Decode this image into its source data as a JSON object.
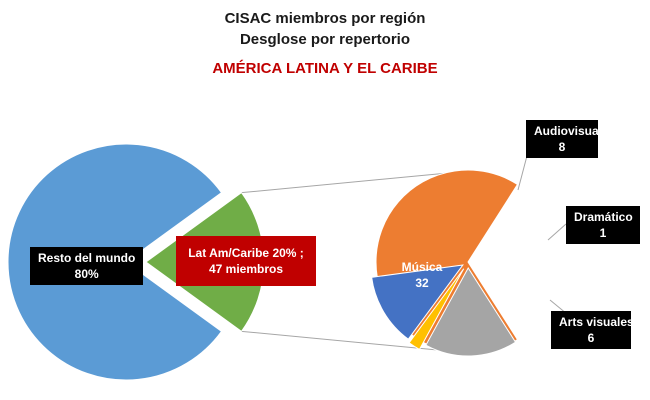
{
  "header": {
    "title": "CISAC miembros por región",
    "subtitle": "Desglose por repertorio",
    "region": "AMÉRICA LATINA Y EL CARIBE"
  },
  "colors": {
    "resto": "#5b9bd5",
    "latam": "#70ad47",
    "musica": "#ed7d31",
    "audiovisual": "#a5a5a5",
    "dramatico": "#ffc000",
    "arts_visuales": "#4472c4",
    "region_title": "#c00000",
    "connector": "#a6a6a6"
  },
  "chart_data": [
    {
      "type": "pie",
      "title": "",
      "slices": [
        {
          "name": "Resto del mundo",
          "value": 80,
          "label": "Resto del mundo",
          "value_label": "80%"
        },
        {
          "name": "Lat Am/Caribe",
          "value": 20,
          "label": "Lat Am/Caribe 20% ;",
          "value_label": "47 miembros"
        }
      ]
    },
    {
      "type": "pie",
      "title": "",
      "slices": [
        {
          "name": "Música",
          "value": 32,
          "label": "Música",
          "value_label": "32"
        },
        {
          "name": "Audiovisual",
          "value": 8,
          "label": "Audiovisual",
          "value_label": "8"
        },
        {
          "name": "Dramático",
          "value": 1,
          "label": "Dramático",
          "value_label": "1"
        },
        {
          "name": "Arts visuales",
          "value": 6,
          "label": "Arts visuales",
          "value_label": "6"
        }
      ]
    }
  ]
}
